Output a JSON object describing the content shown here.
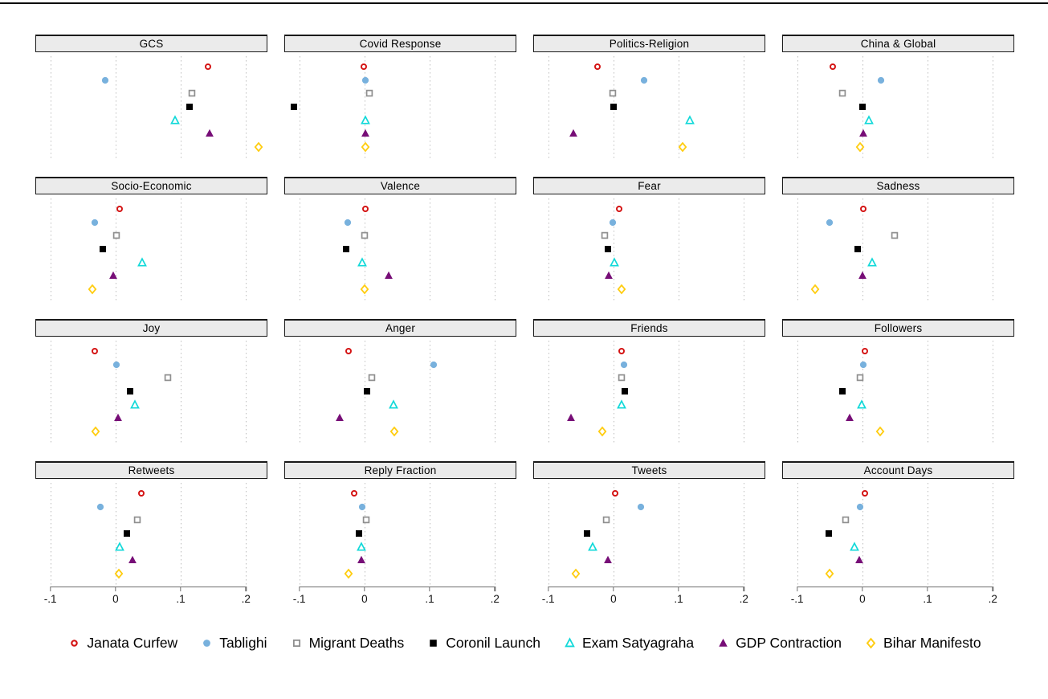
{
  "figure": {
    "background": "#ffffff",
    "top_rule_color": "#000000"
  },
  "chart_data": {
    "type": "scatter",
    "description": "4x4 grid of small-multiple dot plots showing estimated effects of seven events on sixteen outcomes",
    "x_axis": {
      "min": -0.123,
      "max": 0.233,
      "ticks": [
        -0.1,
        0,
        0.1,
        0.2
      ],
      "tick_labels": [
        "-.1",
        "0",
        ".1",
        ".2"
      ],
      "gridlines": "dotted-vertical",
      "axis_rows": "bottom-row-only"
    },
    "style": {
      "gridline_color": "#bdbdbd",
      "panel_title_fill": "#ebebeb",
      "panel_title_border": "#1a1a1a",
      "axis_color": "#6e6e6e",
      "text_color": "#000000"
    },
    "events": [
      {
        "key": "janata-curfew",
        "label": "Janata Curfew",
        "marker": "circle_open",
        "color": "#d41414"
      },
      {
        "key": "tablighi",
        "label": "Tablighi",
        "marker": "circle_filled",
        "color": "#78b1dd"
      },
      {
        "key": "migrant-deaths",
        "label": "Migrant Deaths",
        "marker": "square_open",
        "color": "#8f8f8f"
      },
      {
        "key": "coronil-launch",
        "label": "Coronil Launch",
        "marker": "square_filled",
        "color": "#000000"
      },
      {
        "key": "exam-satyagraha",
        "label": "Exam Satyagraha",
        "marker": "triangle_open",
        "color": "#12d9d9"
      },
      {
        "key": "gdp-contraction",
        "label": "GDP Contraction",
        "marker": "triangle_filled",
        "color": "#770e77"
      },
      {
        "key": "bihar-manifesto",
        "label": "Bihar Manifesto",
        "marker": "diamond_open",
        "color": "#ffcd12"
      }
    ],
    "panels": [
      {
        "title": "GCS",
        "values": [
          0.142,
          -0.016,
          0.117,
          0.113,
          0.091,
          0.144,
          0.22
        ]
      },
      {
        "title": "Covid Response",
        "values": [
          -0.001,
          0.002,
          0.008,
          -0.108,
          0.001,
          0.001,
          0.001
        ]
      },
      {
        "title": "Politics-Religion",
        "values": [
          -0.024,
          0.047,
          -0.001,
          0.0,
          0.117,
          -0.062,
          0.106
        ]
      },
      {
        "title": "China & Global",
        "values": [
          -0.045,
          0.028,
          -0.03,
          0.0,
          0.01,
          0.001,
          -0.004
        ]
      },
      {
        "title": "Socio-Economic",
        "values": [
          0.006,
          -0.032,
          0.001,
          -0.019,
          0.041,
          -0.004,
          -0.036
        ]
      },
      {
        "title": "Valence",
        "values": [
          0.001,
          -0.026,
          0.0,
          -0.028,
          -0.003,
          0.037,
          0.0
        ]
      },
      {
        "title": "Fear",
        "values": [
          0.009,
          -0.001,
          -0.013,
          -0.008,
          0.002,
          -0.007,
          0.013
        ]
      },
      {
        "title": "Sadness",
        "values": [
          0.001,
          -0.05,
          0.049,
          -0.007,
          0.015,
          0.0,
          -0.073
        ]
      },
      {
        "title": "Joy",
        "values": [
          -0.032,
          0.001,
          0.08,
          0.022,
          0.03,
          0.004,
          -0.031
        ]
      },
      {
        "title": "Anger",
        "values": [
          -0.024,
          0.106,
          0.011,
          0.004,
          0.045,
          -0.038,
          0.046
        ]
      },
      {
        "title": "Friends",
        "values": [
          0.012,
          0.016,
          0.012,
          0.018,
          0.013,
          -0.065,
          -0.017
        ]
      },
      {
        "title": "Followers",
        "values": [
          0.004,
          0.002,
          -0.004,
          -0.03,
          -0.001,
          -0.02,
          0.027
        ]
      },
      {
        "title": "Retweets",
        "values": [
          0.039,
          -0.023,
          0.033,
          0.018,
          0.006,
          0.026,
          0.005
        ]
      },
      {
        "title": "Reply Fraction",
        "values": [
          -0.016,
          -0.004,
          0.003,
          -0.009,
          -0.005,
          -0.005,
          -0.024
        ]
      },
      {
        "title": "Tweets",
        "values": [
          0.003,
          0.042,
          -0.011,
          -0.04,
          -0.032,
          -0.009,
          -0.058
        ]
      },
      {
        "title": "Account Days",
        "values": [
          0.004,
          -0.003,
          -0.026,
          -0.051,
          -0.012,
          -0.005,
          -0.05
        ]
      }
    ],
    "marker_row_layout": {
      "first_row_pct": 10.3,
      "row_step_pct": 13.1
    }
  }
}
